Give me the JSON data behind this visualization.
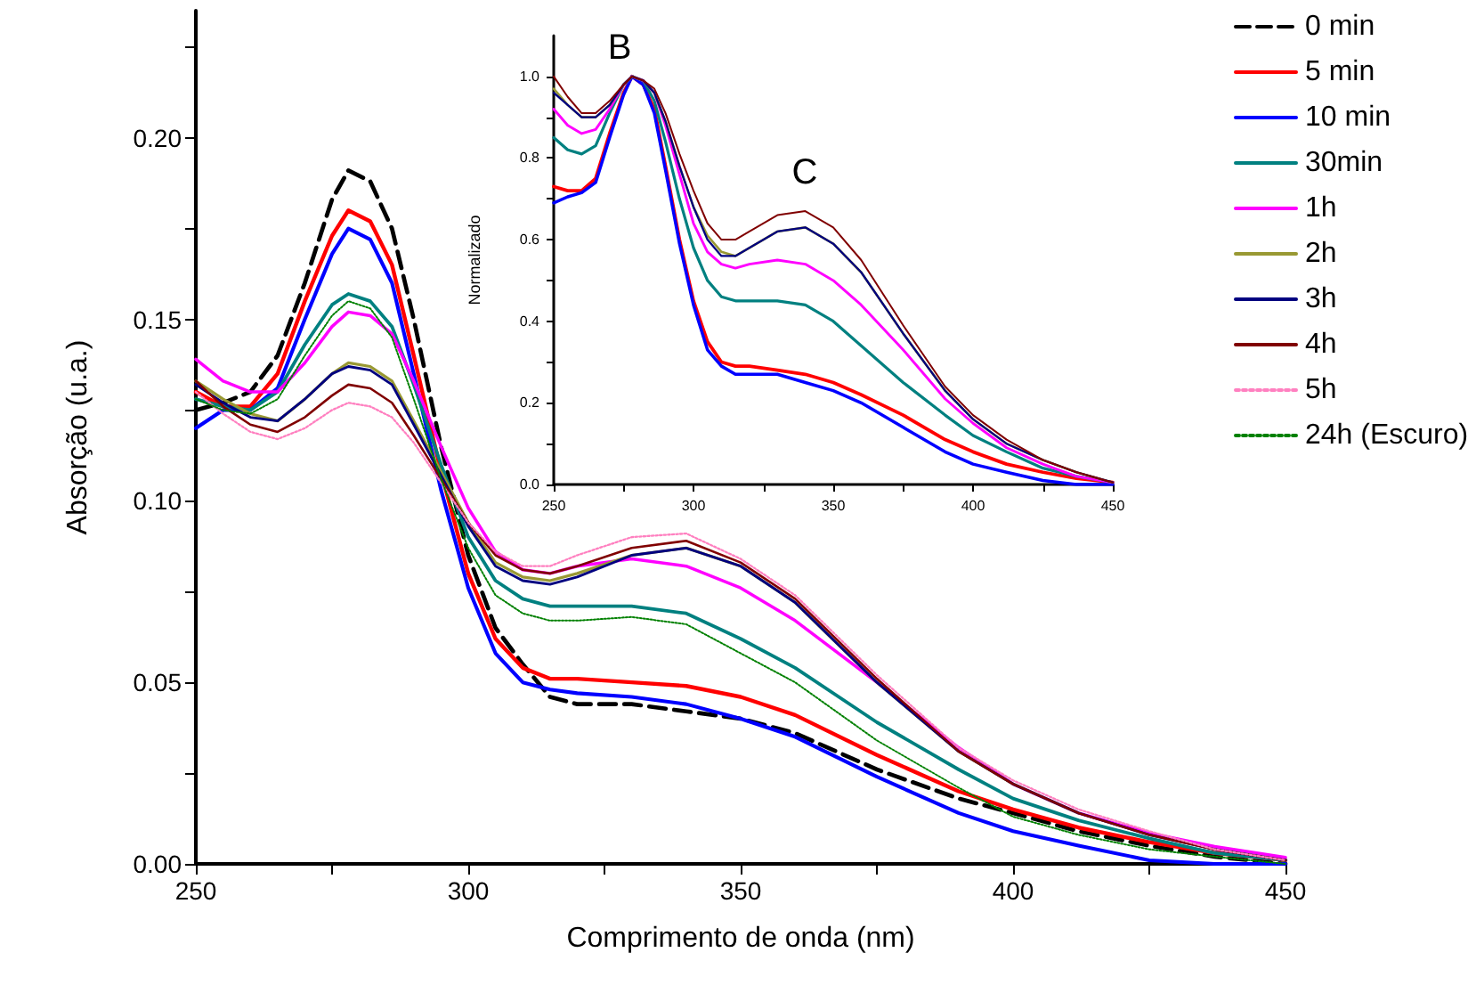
{
  "chart_data": [
    {
      "type": "line",
      "xlabel": "Comprimento de onda (nm)",
      "ylabel": "Absorção (u.a.)",
      "legend": "right",
      "x": [
        250,
        255,
        260,
        265,
        270,
        275,
        278,
        282,
        286,
        290,
        295,
        300,
        305,
        310,
        315,
        320,
        330,
        340,
        350,
        360,
        375,
        390,
        400,
        412,
        425,
        437,
        450
      ],
      "xlim": [
        250,
        450
      ],
      "xticks": [
        250,
        {
          "value": 275,
          "label": null
        },
        300,
        {
          "value": 325,
          "label": null
        },
        350,
        {
          "value": 375,
          "label": null
        },
        400,
        {
          "value": 425,
          "label": null
        },
        450
      ],
      "ylim": [
        0,
        0.235
      ],
      "yticks": [
        {
          "value": 0,
          "label": "0.00"
        },
        {
          "value": 0.025,
          "label": null
        },
        {
          "value": 0.05,
          "label": "0.05"
        },
        {
          "value": 0.075,
          "label": null
        },
        {
          "value": 0.1,
          "label": "0.10"
        },
        {
          "value": 0.125,
          "label": null
        },
        {
          "value": 0.15,
          "label": "0.15"
        },
        {
          "value": 0.175,
          "label": null
        },
        {
          "value": 0.2,
          "label": "0.20"
        },
        {
          "value": 0.225,
          "label": null
        }
      ],
      "series": [
        {
          "name": "0 min",
          "color": "#000000",
          "line_style": "dashed",
          "values": [
            0.125,
            0.127,
            0.13,
            0.14,
            0.16,
            0.183,
            0.191,
            0.188,
            0.175,
            0.15,
            0.115,
            0.085,
            0.065,
            0.055,
            0.046,
            0.044,
            0.044,
            0.042,
            0.04,
            0.036,
            0.026,
            0.018,
            0.014,
            0.009,
            0.005,
            0.002,
            0.0
          ]
        },
        {
          "name": "5 min",
          "color": "#ff0000",
          "values": [
            0.13,
            0.126,
            0.126,
            0.135,
            0.155,
            0.173,
            0.18,
            0.177,
            0.165,
            0.14,
            0.108,
            0.08,
            0.062,
            0.054,
            0.051,
            0.051,
            0.05,
            0.049,
            0.046,
            0.041,
            0.03,
            0.02,
            0.015,
            0.01,
            0.006,
            0.003,
            0.001
          ]
        },
        {
          "name": "10 min",
          "color": "#0000ff",
          "values": [
            0.12,
            0.125,
            0.125,
            0.131,
            0.15,
            0.168,
            0.175,
            0.172,
            0.16,
            0.135,
            0.103,
            0.076,
            0.058,
            0.05,
            0.048,
            0.047,
            0.046,
            0.044,
            0.04,
            0.035,
            0.024,
            0.014,
            0.009,
            0.005,
            0.001,
            0.0,
            0.0
          ]
        },
        {
          "name": "30min",
          "color": "#008080",
          "values": [
            0.128,
            0.126,
            0.125,
            0.13,
            0.143,
            0.154,
            0.157,
            0.155,
            0.148,
            0.132,
            0.11,
            0.09,
            0.078,
            0.073,
            0.071,
            0.071,
            0.071,
            0.069,
            0.062,
            0.054,
            0.039,
            0.026,
            0.018,
            0.012,
            0.007,
            0.003,
            0.001
          ]
        },
        {
          "name": "1h",
          "color": "#ff00ff",
          "values": [
            0.139,
            0.133,
            0.13,
            0.13,
            0.138,
            0.148,
            0.152,
            0.151,
            0.146,
            0.133,
            0.115,
            0.098,
            0.086,
            0.081,
            0.08,
            0.082,
            0.084,
            0.082,
            0.076,
            0.067,
            0.05,
            0.032,
            0.022,
            0.014,
            0.0085,
            0.0048,
            0.0018
          ]
        },
        {
          "name": "2h",
          "color": "#999933",
          "values": [
            0.133,
            0.128,
            0.124,
            0.122,
            0.128,
            0.135,
            0.138,
            0.137,
            0.133,
            0.122,
            0.108,
            0.094,
            0.083,
            0.079,
            0.078,
            0.08,
            0.085,
            0.087,
            0.082,
            0.072,
            0.05,
            0.031,
            0.022,
            0.014,
            null,
            null,
            null
          ]
        },
        {
          "name": "3h",
          "color": "#000080",
          "values": [
            0.132,
            0.127,
            0.123,
            0.122,
            0.128,
            0.135,
            0.137,
            0.136,
            0.132,
            0.121,
            0.107,
            0.093,
            0.082,
            0.078,
            0.077,
            0.079,
            0.085,
            0.087,
            0.082,
            0.072,
            0.05,
            0.031,
            0.022,
            0.014,
            0.008,
            0.004,
            0.001
          ]
        },
        {
          "name": "4h",
          "color": "#800000",
          "values": [
            0.133,
            0.126,
            0.121,
            0.119,
            0.123,
            0.129,
            0.132,
            0.131,
            0.127,
            0.118,
            0.106,
            0.094,
            0.085,
            0.081,
            0.08,
            0.082,
            0.087,
            0.089,
            0.083,
            0.073,
            0.051,
            0.031,
            0.022,
            0.014,
            0.008,
            0.004,
            0.001
          ]
        },
        {
          "name": "5h",
          "color": "#ff80c0",
          "line_style": "dotted",
          "values": [
            0.13,
            0.124,
            0.119,
            0.117,
            0.12,
            0.125,
            0.127,
            0.126,
            0.123,
            0.116,
            0.105,
            0.094,
            0.086,
            0.082,
            0.082,
            0.085,
            0.09,
            0.091,
            0.084,
            0.074,
            0.052,
            0.032,
            0.023,
            0.015,
            0.009,
            0.004,
            0.001
          ]
        },
        {
          "name": "24h (Escuro)",
          "color": "#008000",
          "line_style": "dotted",
          "values": [
            0.128,
            0.125,
            0.124,
            0.128,
            0.14,
            0.151,
            0.155,
            0.153,
            0.145,
            0.128,
            0.106,
            0.087,
            0.074,
            0.069,
            0.067,
            0.067,
            0.068,
            0.066,
            0.058,
            0.05,
            0.034,
            0.021,
            0.013,
            0.008,
            0.004,
            0.002,
            0.0
          ]
        }
      ]
    },
    {
      "type": "line",
      "ylabel": "Normalizado",
      "annotations": [
        "B",
        "C"
      ],
      "x": [
        250,
        255,
        260,
        265,
        270,
        275,
        278,
        282,
        286,
        290,
        295,
        300,
        305,
        310,
        315,
        320,
        330,
        340,
        350,
        360,
        375,
        390,
        400,
        412,
        425,
        437,
        450
      ],
      "xlim": [
        250,
        450
      ],
      "xticks": [
        250,
        {
          "value": 275,
          "label": null
        },
        300,
        {
          "value": 325,
          "label": null
        },
        350,
        {
          "value": 375,
          "label": null
        },
        400,
        {
          "value": 425,
          "label": null
        },
        450
      ],
      "ylim": [
        0,
        1.1
      ],
      "yticks": [
        {
          "value": 0,
          "label": "0.0"
        },
        {
          "value": 0.1,
          "label": null
        },
        0.2,
        {
          "value": 0.3,
          "label": null
        },
        0.4,
        {
          "value": 0.5,
          "label": null
        },
        0.6,
        {
          "value": 0.7,
          "label": null
        },
        0.8,
        {
          "value": 0.9,
          "label": null
        },
        {
          "value": 1,
          "label": "1.0"
        }
      ],
      "series": [
        {
          "color": "#ff0000",
          "values": [
            0.73,
            0.72,
            0.72,
            0.75,
            0.86,
            0.96,
            1.0,
            0.98,
            0.92,
            0.78,
            0.6,
            0.45,
            0.35,
            0.3,
            0.29,
            0.29,
            0.28,
            0.27,
            0.25,
            0.22,
            0.17,
            0.11,
            0.08,
            0.05,
            0.03,
            0.015,
            0.005
          ]
        },
        {
          "color": "#0000ff",
          "values": [
            0.69,
            0.705,
            0.715,
            0.74,
            0.85,
            0.955,
            1.0,
            0.98,
            0.91,
            0.77,
            0.59,
            0.44,
            0.33,
            0.29,
            0.27,
            0.27,
            0.27,
            0.25,
            0.23,
            0.2,
            0.14,
            0.08,
            0.05,
            0.03,
            0.01,
            0.0,
            0.0
          ]
        },
        {
          "color": "#008080",
          "values": [
            0.85,
            0.82,
            0.81,
            0.83,
            0.91,
            0.98,
            1.0,
            0.99,
            0.94,
            0.84,
            0.7,
            0.58,
            0.5,
            0.46,
            0.45,
            0.45,
            0.45,
            0.44,
            0.4,
            0.34,
            0.25,
            0.17,
            0.12,
            0.08,
            0.04,
            0.02,
            0.005
          ]
        },
        {
          "color": "#ff00ff",
          "values": [
            0.92,
            0.88,
            0.86,
            0.87,
            0.92,
            0.98,
            1.0,
            0.99,
            0.96,
            0.88,
            0.76,
            0.64,
            0.57,
            0.54,
            0.53,
            0.54,
            0.55,
            0.54,
            0.5,
            0.44,
            0.33,
            0.21,
            0.15,
            0.09,
            0.05,
            0.02,
            0.005
          ]
        },
        {
          "color": "#999933",
          "values": [
            0.97,
            0.93,
            0.9,
            0.9,
            0.93,
            0.98,
            1.0,
            0.99,
            0.96,
            0.89,
            0.78,
            0.68,
            0.61,
            0.57,
            0.56,
            0.58,
            0.62,
            0.63,
            0.59,
            0.52,
            0.37,
            0.23,
            0.16,
            0.1,
            0.06,
            0.03,
            0.005
          ]
        },
        {
          "color": "#000080",
          "values": [
            0.96,
            0.93,
            0.9,
            0.9,
            0.93,
            0.98,
            1.0,
            0.99,
            0.96,
            0.89,
            0.78,
            0.68,
            0.6,
            0.56,
            0.56,
            0.58,
            0.62,
            0.63,
            0.59,
            0.52,
            0.37,
            0.23,
            0.16,
            0.1,
            0.06,
            0.03,
            0.005
          ]
        },
        {
          "color": "#800000",
          "values": [
            1.0,
            0.95,
            0.91,
            0.91,
            0.94,
            0.98,
            1.0,
            0.99,
            0.97,
            0.91,
            0.81,
            0.72,
            0.64,
            0.6,
            0.6,
            0.62,
            0.66,
            0.67,
            0.63,
            0.55,
            0.39,
            0.24,
            0.17,
            0.11,
            0.06,
            0.03,
            0.005
          ]
        }
      ]
    }
  ]
}
